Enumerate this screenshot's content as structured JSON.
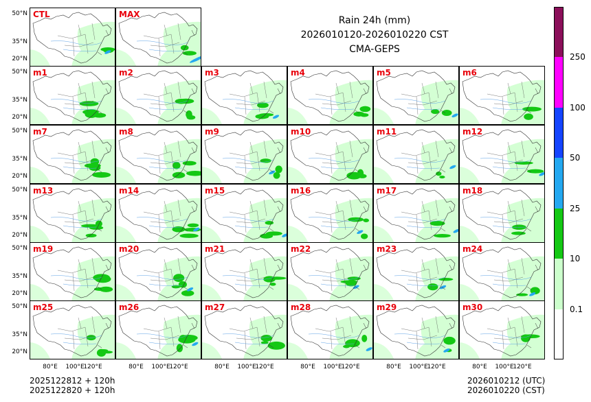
{
  "title": {
    "line1": "Rain 24h (mm)",
    "line2": "2026010120-2026010220 CST",
    "line3": "CMA-GEPS"
  },
  "panels": [
    "CTL",
    "MAX",
    "m1",
    "m2",
    "m3",
    "m4",
    "m5",
    "m6",
    "m7",
    "m8",
    "m9",
    "m10",
    "m11",
    "m12",
    "m13",
    "m14",
    "m15",
    "m16",
    "m17",
    "m18",
    "m19",
    "m20",
    "m21",
    "m22",
    "m23",
    "m24",
    "m25",
    "m26",
    "m27",
    "m28",
    "m29",
    "m30"
  ],
  "lat_labels": [
    "50°N",
    "35°N",
    "20°N"
  ],
  "lon_labels": [
    "80°E",
    "100°E",
    "120°E"
  ],
  "colorbar": {
    "labels": [
      "0.1",
      "10",
      "25",
      "50",
      "100",
      "250"
    ],
    "colors": [
      "#ffffff",
      "#ccffcc",
      "#14c814",
      "#24a8f0",
      "#1444ff",
      "#ff00ff",
      "#8b0f5a"
    ]
  },
  "footer": {
    "left_line1": "2025122812 + 120h",
    "left_line2": "2025122820 + 120h",
    "right_line1": "2026010212 (UTC)",
    "right_line2": "2026010220 (CST)"
  }
}
